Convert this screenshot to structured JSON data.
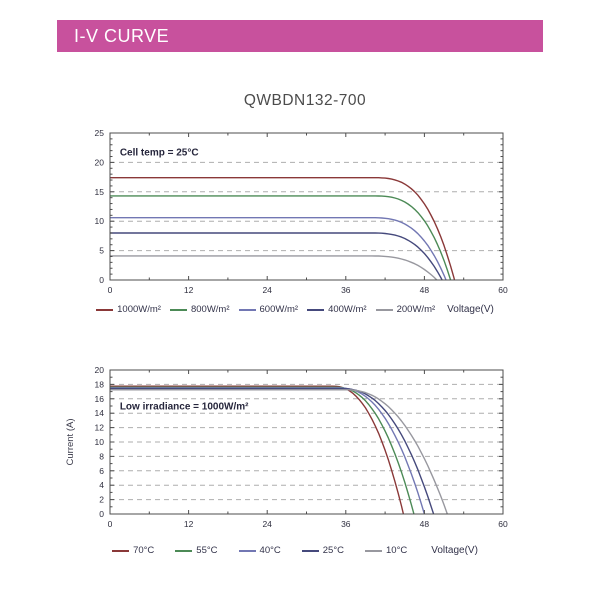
{
  "header": {
    "title": "I-V CURVE",
    "bg_color": "#c8519d",
    "text_color": "#ffffff"
  },
  "page_title": "QWBDN132-700",
  "chart_data": [
    {
      "type": "line",
      "name": "iv-curves-by-irradiance",
      "annotation": "Cell temp = 25°C",
      "annotation_pos": [
        1.5,
        21.7
      ],
      "xlabel": "Voltage(V)",
      "ylabel": "",
      "x_ticks": [
        0,
        12,
        24,
        36,
        48,
        60
      ],
      "y_ticks": [
        0,
        5,
        10,
        15,
        20,
        25
      ],
      "xlim": [
        0,
        60
      ],
      "ylim": [
        0,
        25
      ],
      "grid": "horizontal-dashed",
      "legend_position": "bottom",
      "knee_power": 3.0,
      "series": [
        {
          "label": "1000W/m²",
          "color": "#8a3838",
          "isc": 17.4,
          "knee_v": 40.0,
          "voc": 52.6
        },
        {
          "label": "800W/m²",
          "color": "#4c8a56",
          "isc": 14.3,
          "knee_v": 40.0,
          "voc": 52.0
        },
        {
          "label": "600W/m²",
          "color": "#7277b3",
          "isc": 10.6,
          "knee_v": 39.5,
          "voc": 51.3
        },
        {
          "label": "400W/m²",
          "color": "#45497c",
          "isc": 8.0,
          "knee_v": 39.5,
          "voc": 50.7
        },
        {
          "label": "200W/m²",
          "color": "#98989f",
          "isc": 4.1,
          "knee_v": 39.0,
          "voc": 49.9
        }
      ]
    },
    {
      "type": "line",
      "name": "iv-curves-by-temperature",
      "annotation": "Low irradiance = 1000W/m²",
      "annotation_pos": [
        1.5,
        14.9
      ],
      "xlabel": "Voltage(V)",
      "ylabel": "Current (A)",
      "x_ticks": [
        0,
        12,
        24,
        36,
        48,
        60
      ],
      "y_ticks": [
        0,
        2,
        4,
        6,
        8,
        10,
        12,
        14,
        16,
        18,
        20
      ],
      "xlim": [
        0,
        60
      ],
      "ylim": [
        0,
        20
      ],
      "grid": "horizontal-dashed",
      "legend_position": "bottom",
      "knee_power": 2.3,
      "series": [
        {
          "label": "70°C",
          "color": "#8a3838",
          "isc": 17.75,
          "knee_v": 34.0,
          "voc": 44.8
        },
        {
          "label": "55°C",
          "color": "#4c8a56",
          "isc": 17.6,
          "knee_v": 34.5,
          "voc": 46.4
        },
        {
          "label": "40°C",
          "color": "#7277b3",
          "isc": 17.5,
          "knee_v": 35.0,
          "voc": 48.0
        },
        {
          "label": "25°C",
          "color": "#45497c",
          "isc": 17.4,
          "knee_v": 35.5,
          "voc": 49.4
        },
        {
          "label": "10°C",
          "color": "#98989f",
          "isc": 17.25,
          "knee_v": 36.0,
          "voc": 51.5
        }
      ]
    }
  ]
}
